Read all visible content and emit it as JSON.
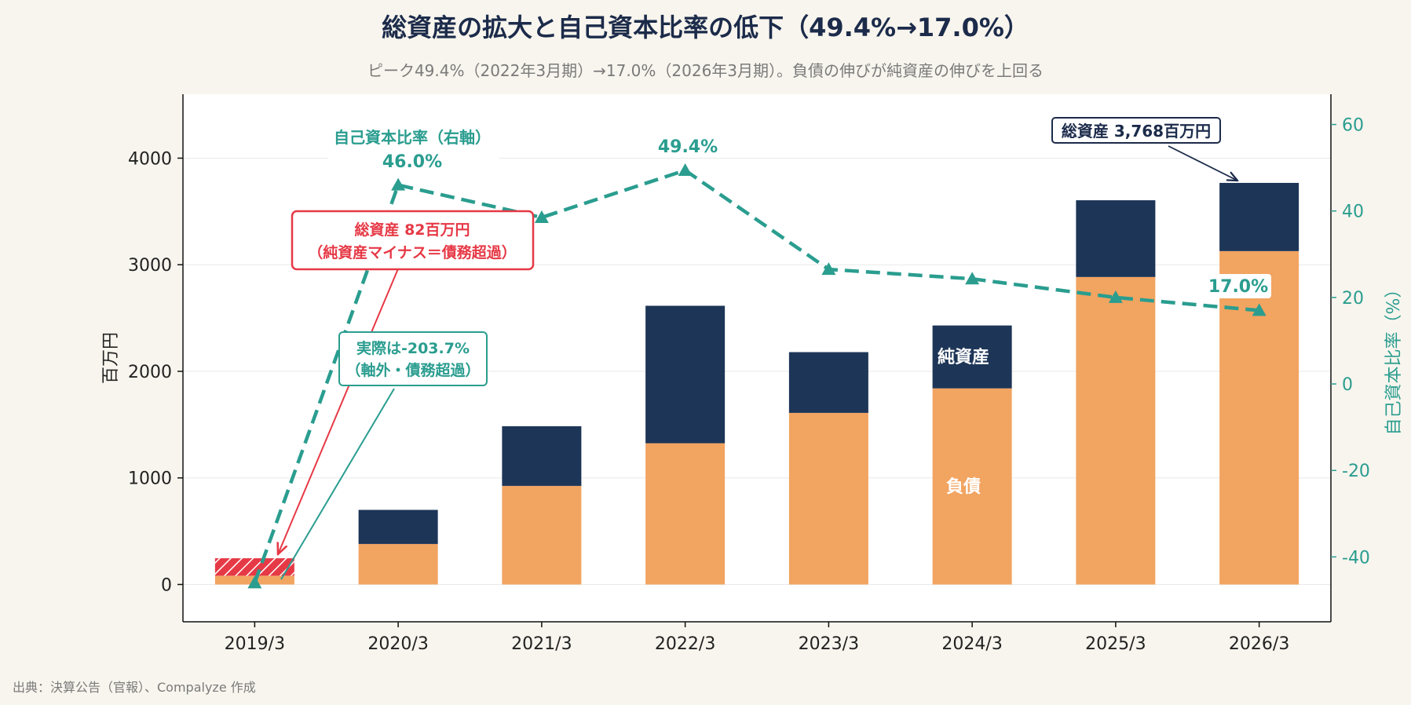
{
  "chart_data": {
    "type": "bar",
    "title": "総資産の拡大と自己資本比率の低下（49.4%→17.0%）",
    "subtitle": "ピーク49.4%（2022年3月期）→17.0%（2026年3月期）。負債の伸びが純資産の伸びを上回る",
    "source": "出典：決算公告（官報）、Compalyze 作成",
    "categories": [
      "2019/3",
      "2020/3",
      "2021/3",
      "2022/3",
      "2023/3",
      "2024/3",
      "2025/3",
      "2026/3"
    ],
    "ylabel": "百万円",
    "ylabel_right": "自己資本比率（%）",
    "ylim": [
      -350,
      4600
    ],
    "ylim_right": [
      -55,
      67
    ],
    "yticks": [
      0,
      1000,
      2000,
      3000,
      4000
    ],
    "yticks_right": [
      -40,
      -20,
      0,
      20,
      40,
      60
    ],
    "series": [
      {
        "name": "負債",
        "color": "#f2a461",
        "values": [
          82,
          380,
          925,
          1325,
          1610,
          1840,
          2885,
          3128
        ]
      },
      {
        "name": "純資産",
        "color": "#1d3557",
        "values": [
          0,
          320,
          560,
          1290,
          570,
          590,
          720,
          640
        ]
      },
      {
        "name": "自己資本比率（右軸）",
        "color": "#2a9d8f",
        "type": "line",
        "axis": "right",
        "values": [
          -46,
          46.0,
          38.5,
          49.4,
          26.5,
          24.3,
          20.0,
          17.0
        ],
        "actual_values": [
          -203.7,
          null,
          null,
          null,
          null,
          null,
          null,
          null
        ]
      }
    ],
    "negative_equity": {
      "category": "2019/3",
      "value": 164,
      "color": "#e63946"
    },
    "annotations": {
      "series_label": "自己資本比率（右軸）",
      "first_ratio": "46.0%",
      "peak_ratio": "49.4%",
      "last_ratio": "17.0%",
      "total_assets_last": "総資産 3,768百万円",
      "deficit_line1": "総資産 82百万円",
      "deficit_line2": "（純資産マイナス＝債務超過）",
      "offaxis_line1": "実際は-203.7%",
      "offaxis_line2": "（軸外・債務超過）",
      "inner_equity": "純資産",
      "inner_liabilities": "負債"
    },
    "grid": true
  }
}
